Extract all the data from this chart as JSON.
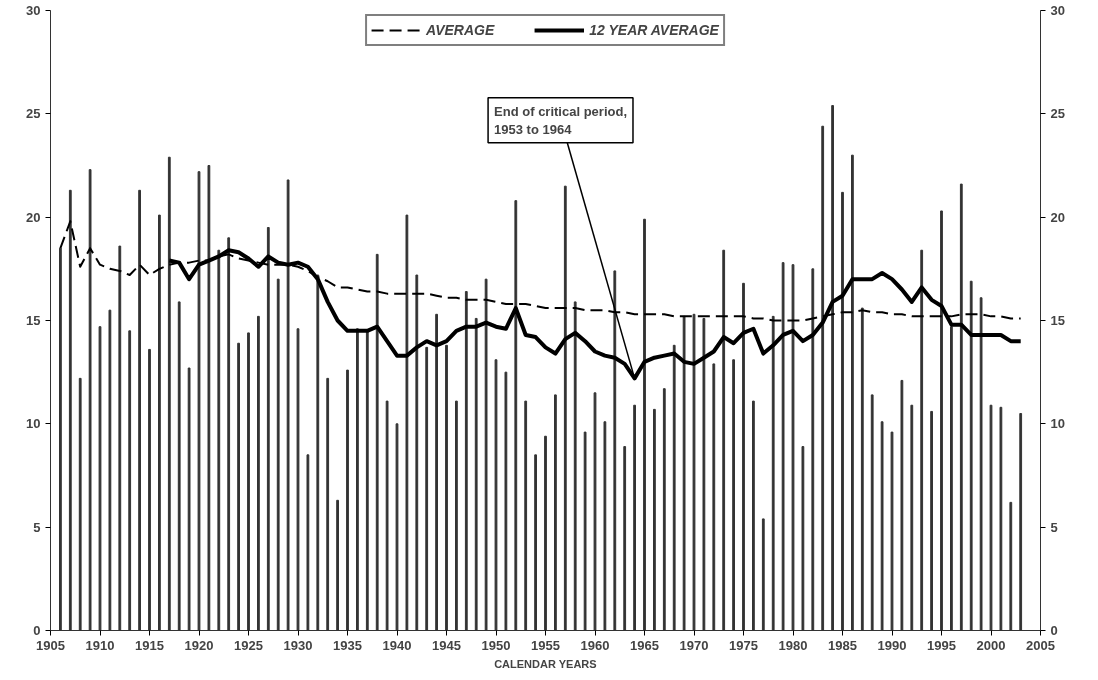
{
  "chart_data": {
    "type": "bar",
    "xlabel": "CALENDAR YEARS",
    "legend": "top",
    "x": [
      1906,
      1907,
      1908,
      1909,
      1910,
      1911,
      1912,
      1913,
      1914,
      1915,
      1916,
      1917,
      1918,
      1919,
      1920,
      1921,
      1922,
      1923,
      1924,
      1925,
      1926,
      1927,
      1928,
      1929,
      1930,
      1931,
      1932,
      1933,
      1934,
      1935,
      1936,
      1937,
      1938,
      1939,
      1940,
      1941,
      1942,
      1943,
      1944,
      1945,
      1946,
      1947,
      1948,
      1949,
      1950,
      1951,
      1952,
      1953,
      1954,
      1955,
      1956,
      1957,
      1958,
      1959,
      1960,
      1961,
      1962,
      1963,
      1964,
      1965,
      1966,
      1967,
      1968,
      1969,
      1970,
      1971,
      1972,
      1973,
      1974,
      1975,
      1976,
      1977,
      1978,
      1979,
      1980,
      1981,
      1982,
      1983,
      1984,
      1985,
      1986,
      1987,
      1988,
      1989,
      1990,
      1991,
      1992,
      1993,
      1994,
      1995,
      1996,
      1997,
      1998,
      1999,
      2000,
      2001,
      2002,
      2003
    ],
    "series": [
      {
        "color": "#333333",
        "values": [
          18.5,
          21.3,
          12.2,
          22.3,
          14.7,
          15.5,
          18.6,
          14.5,
          21.3,
          13.6,
          20.1,
          22.9,
          15.9,
          12.7,
          22.2,
          22.5,
          18.4,
          19.0,
          13.9,
          14.4,
          15.2,
          19.5,
          17.0,
          21.8,
          14.6,
          8.5,
          17.2,
          12.2,
          6.3,
          12.6,
          14.6,
          14.5,
          18.2,
          11.1,
          10.0,
          20.1,
          17.2,
          13.7,
          15.3,
          13.8,
          11.1,
          16.4,
          15.1,
          17.0,
          13.1,
          12.5,
          20.8,
          11.1,
          8.5,
          9.4,
          11.4,
          21.5,
          15.9,
          9.6,
          11.5,
          10.1,
          17.4,
          8.9,
          10.9,
          19.9,
          10.7,
          11.7,
          13.8,
          15.2,
          15.3,
          15.1,
          12.9,
          18.4,
          13.1,
          16.8,
          11.1,
          5.4,
          15.2,
          17.8,
          17.7,
          8.9,
          17.5,
          24.4,
          25.4,
          21.2,
          23.0,
          15.6,
          11.4,
          10.1,
          9.6,
          12.1,
          10.9,
          18.4,
          10.6,
          20.3,
          14.7,
          21.6,
          16.9,
          16.1,
          10.9,
          10.8,
          6.2,
          10.5
        ]
      },
      {
        "type": "line",
        "name": "AVERAGE",
        "color": "#000000",
        "line_style": "dashed",
        "values": [
          18.5,
          19.8,
          17.6,
          18.5,
          17.7,
          17.5,
          17.4,
          17.2,
          17.7,
          17.2,
          17.5,
          17.7,
          17.8,
          17.8,
          17.9,
          17.9,
          18.1,
          18.2,
          18.0,
          17.9,
          17.8,
          17.7,
          17.7,
          17.7,
          17.6,
          17.4,
          17.1,
          16.9,
          16.6,
          16.6,
          16.5,
          16.4,
          16.4,
          16.3,
          16.3,
          16.3,
          16.3,
          16.3,
          16.2,
          16.1,
          16.1,
          16.0,
          16.0,
          16.0,
          15.9,
          15.8,
          15.8,
          15.8,
          15.7,
          15.6,
          15.6,
          15.6,
          15.6,
          15.5,
          15.5,
          15.5,
          15.4,
          15.4,
          15.3,
          15.3,
          15.3,
          15.3,
          15.2,
          15.2,
          15.2,
          15.2,
          15.2,
          15.2,
          15.2,
          15.2,
          15.1,
          15.1,
          15.0,
          15.0,
          15.0,
          15.0,
          15.1,
          15.2,
          15.3,
          15.4,
          15.4,
          15.5,
          15.4,
          15.4,
          15.3,
          15.3,
          15.2,
          15.2,
          15.2,
          15.2,
          15.2,
          15.3,
          15.3,
          15.3,
          15.2,
          15.2,
          15.1,
          15.1
        ]
      },
      {
        "type": "line",
        "name": "12 YEAR AVERAGE",
        "color": "#000000",
        "line_style": "solid",
        "x": [
          1917,
          1918,
          1919,
          1920,
          1921,
          1922,
          1923,
          1924,
          1925,
          1926,
          1927,
          1928,
          1929,
          1930,
          1931,
          1932,
          1933,
          1934,
          1935,
          1936,
          1937,
          1938,
          1939,
          1940,
          1941,
          1942,
          1943,
          1944,
          1945,
          1946,
          1947,
          1948,
          1949,
          1950,
          1951,
          1952,
          1953,
          1954,
          1955,
          1956,
          1957,
          1958,
          1959,
          1960,
          1961,
          1962,
          1963,
          1964,
          1965,
          1966,
          1967,
          1968,
          1969,
          1970,
          1971,
          1972,
          1973,
          1974,
          1975,
          1976,
          1977,
          1978,
          1979,
          1980,
          1981,
          1982,
          1983,
          1984,
          1985,
          1986,
          1987,
          1988,
          1989,
          1990,
          1991,
          1992,
          1993,
          1994,
          1995,
          1996,
          1997,
          1998,
          1999,
          2000,
          2001,
          2002,
          2003
        ],
        "values": [
          17.9,
          17.8,
          17.0,
          17.7,
          17.9,
          18.1,
          18.4,
          18.3,
          18.0,
          17.6,
          18.1,
          17.8,
          17.7,
          17.8,
          17.6,
          17.0,
          15.9,
          15.0,
          14.5,
          14.5,
          14.5,
          14.7,
          14.0,
          13.3,
          13.3,
          13.7,
          14.0,
          13.8,
          14.0,
          14.5,
          14.7,
          14.7,
          14.9,
          14.7,
          14.6,
          15.6,
          14.3,
          14.2,
          13.7,
          13.4,
          14.1,
          14.4,
          14.0,
          13.5,
          13.3,
          13.2,
          12.9,
          12.2,
          13.0,
          13.2,
          13.3,
          13.4,
          13.0,
          12.9,
          13.2,
          13.5,
          14.2,
          13.9,
          14.4,
          14.6,
          13.4,
          13.8,
          14.3,
          14.5,
          14.0,
          14.3,
          14.9,
          15.9,
          16.2,
          17.0,
          17.0,
          17.0,
          17.3,
          17.0,
          16.5,
          15.9,
          16.6,
          16.0,
          15.7,
          14.8,
          14.8,
          14.3,
          14.3,
          14.3,
          14.3,
          14.0,
          14.0
        ]
      }
    ],
    "xlim": [
      1905,
      2005
    ],
    "xticks": [
      1905,
      1910,
      1915,
      1920,
      1925,
      1930,
      1935,
      1940,
      1945,
      1950,
      1955,
      1960,
      1965,
      1970,
      1975,
      1980,
      1985,
      1990,
      1995,
      2000,
      2005
    ],
    "ylim": [
      0,
      30
    ],
    "yticks": [
      0,
      5,
      10,
      15,
      20,
      25,
      30
    ],
    "y2lim": [
      0,
      30
    ],
    "y2ticks": [
      0,
      5,
      10,
      15,
      20,
      25,
      30
    ],
    "annotations": [
      {
        "text": "End of critical period,\n1953 to 1964",
        "x": 1964,
        "y": 12.2
      }
    ]
  }
}
